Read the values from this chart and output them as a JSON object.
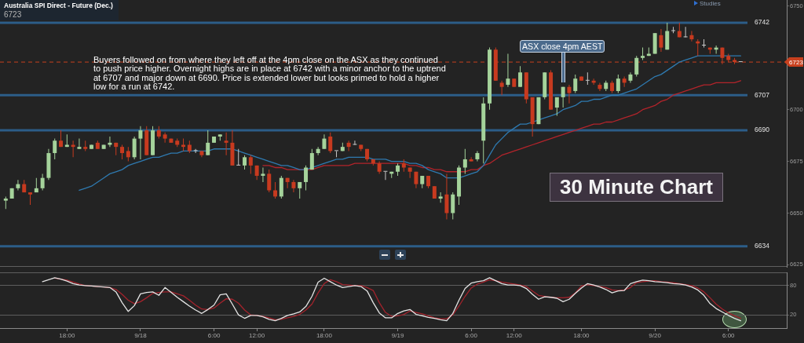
{
  "chart_data": [
    {
      "type": "candlestick",
      "title": "Australia SPI Direct - Future (Dec.)",
      "subtitle": "6723",
      "categories": [
        null,
        null,
        null,
        null,
        null,
        null,
        null,
        null,
        null,
        null,
        null,
        null,
        null,
        null,
        null,
        null,
        null,
        null,
        null,
        null,
        null,
        null,
        null,
        null,
        null,
        null,
        null,
        null,
        null,
        null,
        null,
        null,
        null,
        null,
        null,
        null,
        null,
        null,
        null,
        null,
        null,
        null,
        null,
        null,
        null,
        null,
        null,
        null,
        null,
        null,
        null,
        null,
        null,
        null,
        null,
        null,
        null,
        null,
        null,
        null,
        null,
        null,
        null,
        null,
        null,
        null,
        null,
        null,
        null,
        null,
        null,
        null,
        null,
        null,
        null,
        null,
        null,
        null,
        null,
        null,
        null,
        null,
        null,
        null,
        null,
        null,
        null,
        null,
        null,
        null,
        null,
        null,
        null,
        null,
        null,
        null,
        null,
        null,
        null,
        null,
        null,
        null,
        null,
        null,
        null,
        null,
        null,
        null,
        null,
        null,
        null,
        null,
        null,
        null,
        null,
        null,
        null,
        null,
        null,
        null,
        null
      ],
      "series": [
        {
          "type": "candlestick",
          "ohlc": [
            [
              6656,
              6658,
              6652,
              6657
            ],
            [
              6657,
              6662,
              6657,
              6662
            ],
            [
              6662,
              6666,
              6661,
              6664
            ],
            [
              6664,
              6666,
              6660,
              6660
            ],
            [
              6660,
              6660,
              6654,
              6659
            ],
            [
              6660,
              6667,
              6660,
              6662
            ],
            [
              6662,
              6669,
              6661,
              6667
            ],
            [
              6667,
              6681,
              6666,
              6679
            ],
            [
              6679,
              6686,
              6676,
              6685
            ],
            [
              6685,
              6690,
              6682,
              6682
            ],
            [
              6682,
              6688,
              6682,
              6683
            ],
            [
              6683,
              6685,
              6677,
              6682
            ],
            [
              6681,
              6686,
              6681,
              6682
            ],
            [
              6682,
              6685,
              6680,
              6681
            ],
            [
              6681,
              6683,
              6681,
              6683
            ],
            [
              6684,
              6685,
              6681,
              6681
            ],
            [
              6681,
              6683,
              6681,
              6683
            ],
            [
              6683,
              6687,
              6682,
              6684
            ],
            [
              6684,
              6684,
              6678,
              6682
            ],
            [
              6682,
              6683,
              6676,
              6679
            ],
            [
              6680,
              6682,
              6675,
              6677
            ],
            [
              6677,
              6687,
              6676,
              6686
            ],
            [
              6686,
              6692,
              6676,
              6690
            ],
            [
              6690,
              6692,
              6678,
              6678
            ],
            [
              6678,
              6692,
              6678,
              6690
            ],
            [
              6690,
              6692,
              6686,
              6687
            ],
            [
              6688,
              6689,
              6684,
              6686
            ],
            [
              6686,
              6686,
              6684,
              6684
            ],
            [
              6685,
              6686,
              6682,
              6683
            ],
            [
              6683,
              6686,
              6680,
              6682
            ],
            [
              6683,
              6685,
              6679,
              6680
            ],
            [
              6680,
              6681,
              6679,
              6680
            ],
            [
              6680,
              6680,
              6677,
              6678
            ],
            [
              6678,
              6690,
              6678,
              6684
            ],
            [
              6684,
              6687,
              6684,
              6687
            ],
            [
              6687,
              6688,
              6685,
              6688
            ],
            [
              6685,
              6689,
              6678,
              6684
            ],
            [
              6684,
              6690,
              6673,
              6673
            ],
            [
              6673,
              6681,
              6673,
              6673
            ],
            [
              6673,
              6678,
              6671,
              6677
            ],
            [
              6677,
              6678,
              6669,
              6673
            ],
            [
              6673,
              6673,
              6666,
              6668
            ],
            [
              6668,
              6672,
              6665,
              6669
            ],
            [
              6669,
              6671,
              6660,
              6661
            ],
            [
              6661,
              6665,
              6657,
              6658
            ],
            [
              6658,
              6668,
              6657,
              6667
            ],
            [
              6667,
              6667,
              6662,
              6665
            ],
            [
              6665,
              6666,
              6660,
              6662
            ],
            [
              6662,
              6665,
              6657,
              6665
            ],
            [
              6665,
              6673,
              6661,
              6672
            ],
            [
              6671,
              6681,
              6671,
              6679
            ],
            [
              6679,
              6682,
              6678,
              6681
            ],
            [
              6681,
              6688,
              6681,
              6686
            ],
            [
              6687,
              6689,
              6679,
              6680
            ],
            [
              6680,
              6680,
              6677,
              6680
            ],
            [
              6680,
              6684,
              6680,
              6682
            ],
            [
              6684,
              6685,
              6680,
              6682
            ],
            [
              6683,
              6685,
              6683,
              6683
            ],
            [
              6683,
              6683,
              6680,
              6681
            ],
            [
              6681,
              6681,
              6675,
              6676
            ],
            [
              6676,
              6676,
              6673,
              6674
            ],
            [
              6674,
              6675,
              6669,
              6670
            ],
            [
              6670,
              6670,
              6666,
              6670
            ],
            [
              6669,
              6670,
              6667,
              6670
            ],
            [
              6670,
              6674,
              6668,
              6673
            ],
            [
              6674,
              6676,
              6670,
              6672
            ],
            [
              6672,
              6672,
              6667,
              6670
            ],
            [
              6670,
              6670,
              6662,
              6664
            ],
            [
              6664,
              6668,
              6662,
              6668
            ],
            [
              6668,
              6668,
              6662,
              6663
            ],
            [
              6663,
              6663,
              6657,
              6657
            ],
            [
              6657,
              6660,
              6655,
              6658
            ],
            [
              6659,
              6669,
              6647,
              6650
            ],
            [
              6650,
              6660,
              6647,
              6659
            ],
            [
              6658,
              6673,
              6654,
              6672
            ],
            [
              6672,
              6681,
              6669,
              6676
            ],
            [
              6676,
              6677,
              6675,
              6675
            ],
            [
              6676,
              6680,
              6675,
              6679
            ],
            [
              6685,
              6706,
              6674,
              6703
            ],
            [
              6703,
              6730,
              6700,
              6729
            ],
            [
              6729,
              6730,
              6714,
              6714
            ],
            [
              6713,
              6714,
              6707,
              6711
            ],
            [
              6712,
              6727,
              6711,
              6715
            ],
            [
              6715,
              6715,
              6711,
              6711
            ],
            [
              6711,
              6721,
              6711,
              6718
            ],
            [
              6718,
              6718,
              6703,
              6705
            ],
            [
              6706,
              6706,
              6687,
              6693
            ],
            [
              6693,
              6706,
              6693,
              6706
            ],
            [
              6706,
              6718,
              6705,
              6718
            ],
            [
              6718,
              6719,
              6700,
              6700
            ],
            [
              6701,
              6706,
              6697,
              6706
            ],
            [
              6706,
              6711,
              6701,
              6711
            ],
            [
              6711,
              6712,
              6703,
              6708
            ],
            [
              6709,
              6717,
              6708,
              6715
            ],
            [
              6716,
              6716,
              6714,
              6714
            ],
            [
              6714,
              6718,
              6712,
              6714
            ],
            [
              6714,
              6715,
              6712,
              6713
            ],
            [
              6712,
              6713,
              6709,
              6710
            ],
            [
              6710,
              6714,
              6709,
              6713
            ],
            [
              6713,
              6714,
              6708,
              6709
            ],
            [
              6709,
              6717,
              6708,
              6715
            ],
            [
              6715,
              6716,
              6711,
              6713
            ],
            [
              6714,
              6718,
              6713,
              6717
            ],
            [
              6717,
              6726,
              6716,
              6725
            ],
            [
              6725,
              6730,
              6724,
              6726
            ],
            [
              6726,
              6730,
              6726,
              6727
            ],
            [
              6727,
              6737,
              6727,
              6737
            ],
            [
              6736,
              6739,
              6728,
              6730
            ],
            [
              6729,
              6742,
              6729,
              6738
            ],
            [
              6738,
              6740,
              6737,
              6738
            ],
            [
              6738,
              6742,
              6735,
              6735
            ],
            [
              6735,
              6740,
              6735,
              6735
            ],
            [
              6736,
              6738,
              6733,
              6734
            ],
            [
              6733,
              6734,
              6726,
              6732
            ],
            [
              6731,
              6734,
              6730,
              6731
            ],
            [
              6730,
              6730,
              6727,
              6729
            ],
            [
              6729,
              6731,
              6727,
              6730
            ],
            [
              6730,
              6730,
              6722,
              6725
            ],
            [
              6726,
              6727,
              6723,
              6724
            ],
            [
              6724,
              6725,
              6722,
              6723
            ],
            [
              6723,
              6723,
              6723,
              6723
            ]
          ],
          "colors": [
            "#a5d39b",
            "#a5d39b",
            "#a5d39b",
            "#c73a1f",
            "#c73a1f",
            "#a5d39b",
            "#a5d39b",
            "#a5d39b",
            "#a5d39b",
            "#c73a1f",
            "#a5d39b",
            "#c73a1f",
            "#a5d39b",
            "#c73a1f",
            "#a5d39b",
            "#c73a1f",
            "#a5d39b",
            "#a5d39b",
            "#c73a1f",
            "#c73a1f",
            "#c73a1f",
            "#a5d39b",
            "#a5d39b",
            "#c73a1f",
            "#a5d39b",
            "#c73a1f",
            "#c73a1f",
            "#c73a1f",
            "#c73a1f",
            "#c73a1f",
            "#c73a1f",
            "#c8c8c8",
            "#c73a1f",
            "#a5d39b",
            "#a5d39b",
            "#a5d39b",
            "#c73a1f",
            "#c73a1f",
            "#c8c8c8",
            "#a5d39b",
            "#c73a1f",
            "#c73a1f",
            "#a5d39b",
            "#c73a1f",
            "#c73a1f",
            "#a5d39b",
            "#c73a1f",
            "#c73a1f",
            "#a5d39b",
            "#a5d39b",
            "#a5d39b",
            "#a5d39b",
            "#a5d39b",
            "#c73a1f",
            "#c8c8c8",
            "#a5d39b",
            "#c73a1f",
            "#c8c8c8",
            "#c73a1f",
            "#c73a1f",
            "#c73a1f",
            "#c73a1f",
            "#c8c8c8",
            "#a5d39b",
            "#a5d39b",
            "#c73a1f",
            "#c73a1f",
            "#c73a1f",
            "#a5d39b",
            "#c73a1f",
            "#c73a1f",
            "#a5d39b",
            "#c73a1f",
            "#a5d39b",
            "#a5d39b",
            "#a5d39b",
            "#c73a1f",
            "#a5d39b",
            "#a5d39b",
            "#a5d39b",
            "#c73a1f",
            "#c73a1f",
            "#a5d39b",
            "#c73a1f",
            "#a5d39b",
            "#c73a1f",
            "#c73a1f",
            "#a5d39b",
            "#a5d39b",
            "#c73a1f",
            "#a5d39b",
            "#a5d39b",
            "#c73a1f",
            "#a5d39b",
            "#c73a1f",
            "#c8c8c8",
            "#c73a1f",
            "#c73a1f",
            "#a5d39b",
            "#c73a1f",
            "#a5d39b",
            "#c73a1f",
            "#a5d39b",
            "#a5d39b",
            "#a5d39b",
            "#a5d39b",
            "#a5d39b",
            "#c73a1f",
            "#a5d39b",
            "#c8c8c8",
            "#c73a1f",
            "#c8c8c8",
            "#c73a1f",
            "#c73a1f",
            "#c8c8c8",
            "#c73a1f",
            "#a5d39b",
            "#c73a1f",
            "#c73a1f",
            "#c73a1f",
            "#c8c8c8"
          ]
        },
        {
          "type": "line",
          "color": "#2f7ab0",
          "values": [
            null,
            null,
            null,
            null,
            null,
            null,
            null,
            null,
            null,
            null,
            null,
            null,
            6661,
            6662,
            6663,
            6665,
            6667,
            6669,
            6670,
            6671,
            6673,
            6674,
            6675,
            6676,
            6677,
            6677,
            6678,
            6679,
            6679,
            6680,
            6680,
            6680,
            6680,
            6680,
            6681,
            6681,
            6681,
            6681,
            6680,
            6679,
            6678,
            6677,
            6676,
            6675,
            6674,
            6673,
            6673,
            6672,
            6671,
            6671,
            6672,
            6673,
            6674,
            6675,
            6676,
            6676,
            6677,
            6677,
            6677,
            6677,
            6676,
            6676,
            6676,
            6675,
            6675,
            6675,
            6674,
            6674,
            6673,
            6671,
            6670,
            6669,
            6667,
            6667,
            6667,
            6668,
            6669,
            6670,
            6673,
            6678,
            6683,
            6686,
            6689,
            6691,
            6693,
            6693,
            6694,
            6695,
            6696,
            6697,
            6698,
            6700,
            6701,
            6702,
            6704,
            6704,
            6705,
            6705,
            6706,
            6707,
            6707,
            6708,
            6709,
            6710,
            6712,
            6714,
            6716,
            6717,
            6719,
            6721,
            6723,
            6724,
            6725,
            6726,
            6726,
            6726,
            6726,
            6726,
            6726,
            6726,
            6726
          ]
        },
        {
          "type": "line",
          "color": "#b3242b",
          "values": [
            null,
            null,
            null,
            null,
            null,
            null,
            null,
            null,
            null,
            null,
            null,
            null,
            null,
            null,
            null,
            null,
            null,
            null,
            null,
            null,
            null,
            null,
            null,
            null,
            null,
            null,
            null,
            null,
            null,
            null,
            null,
            null,
            null,
            null,
            null,
            null,
            null,
            null,
            null,
            null,
            null,
            null,
            6673,
            6673,
            6672,
            6672,
            6671,
            6671,
            6671,
            6671,
            6671,
            6672,
            6673,
            6673,
            6673,
            6673,
            6673,
            6674,
            6674,
            6674,
            6674,
            6674,
            6674,
            6674,
            6674,
            6674,
            6673,
            6673,
            6672,
            6672,
            6671,
            6671,
            6670,
            6670,
            6670,
            6670,
            6671,
            6671,
            6673,
            6674,
            6676,
            6678,
            6679,
            6680,
            6681,
            6682,
            6683,
            6684,
            6685,
            6686,
            6687,
            6688,
            6689,
            6690,
            6691,
            6692,
            6693,
            6693,
            6694,
            6694,
            6695,
            6696,
            6697,
            6698,
            6700,
            6701,
            6702,
            6704,
            6705,
            6707,
            6708,
            6709,
            6710,
            6711,
            6712,
            6712,
            6713,
            6713,
            6713,
            6713,
            6714
          ]
        }
      ],
      "ylim": [
        6624,
        6753
      ],
      "yticks": [
        6625,
        6650,
        6675,
        6700,
        6750
      ],
      "ref_lines": [
        {
          "axis": "y",
          "value": 6742,
          "label": "6742",
          "color": "#2c5d88"
        },
        {
          "axis": "y",
          "value": 6707,
          "label": "6707",
          "color": "#2c5d88"
        },
        {
          "axis": "y",
          "value": 6690,
          "label": "6690",
          "color": "#2c5d88"
        },
        {
          "axis": "y",
          "value": 6634,
          "label": "6634",
          "color": "#2c5d88"
        },
        {
          "axis": "y",
          "value": 6723,
          "label": "6723",
          "color": "#c8401e",
          "line_style": "dashed"
        }
      ],
      "annotations": [
        "Buyers followed on from where they left off at the 4pm close on the ASX as they continued\nto push price higher. Overnight highs are in place at 6742 with a minor anchor to the uptrend\nat 6707 and major down at 6690. Price is extended lower but looks primed to hold a higher\nlow for a run at 6742.",
        "ASX close 4pm AEST",
        "30 Minute Chart",
        "Studies"
      ],
      "tick_labels": "y"
    },
    {
      "type": "line",
      "categories": [
        null,
        null,
        null,
        null,
        null,
        null,
        null,
        null,
        null,
        null,
        "18:00",
        null,
        null,
        null,
        null,
        null,
        null,
        null,
        null,
        null,
        null,
        null,
        "9/18",
        null,
        null,
        null,
        null,
        null,
        null,
        null,
        null,
        null,
        null,
        null,
        "6:00",
        null,
        null,
        null,
        null,
        null,
        null,
        "12:00",
        null,
        null,
        null,
        null,
        null,
        null,
        null,
        null,
        null,
        null,
        "18:00",
        null,
        null,
        null,
        null,
        null,
        null,
        null,
        null,
        null,
        null,
        null,
        "9/19",
        null,
        null,
        null,
        null,
        null,
        null,
        null,
        null,
        null,
        null,
        null,
        "6:00",
        null,
        null,
        null,
        null,
        null,
        null,
        "12:00",
        null,
        null,
        null,
        null,
        null,
        null,
        null,
        null,
        null,
        null,
        "18:00",
        null,
        null,
        null,
        null,
        null,
        null,
        null,
        null,
        null,
        null,
        null,
        "9/20",
        null,
        null,
        null,
        null,
        null,
        null,
        null,
        null,
        null,
        null,
        null,
        "6:00",
        null,
        null
      ],
      "series": [
        {
          "color": "#e4e4e4",
          "values": [
            null,
            null,
            null,
            null,
            null,
            null,
            88,
            92,
            96,
            93,
            89,
            84,
            81,
            80,
            79,
            78,
            77,
            76,
            67,
            45,
            27,
            39,
            63,
            66,
            67,
            60,
            76,
            66,
            56,
            47,
            38,
            30,
            23,
            31,
            40,
            61,
            63,
            42,
            20,
            13,
            19,
            19,
            16,
            11,
            8,
            13,
            19,
            22,
            26,
            37,
            58,
            87,
            95,
            88,
            81,
            76,
            78,
            80,
            78,
            69,
            45,
            24,
            14,
            14,
            23,
            28,
            31,
            21,
            18,
            15,
            13,
            10,
            8,
            23,
            50,
            74,
            85,
            88,
            90,
            96,
            90,
            84,
            81,
            81,
            80,
            74,
            62,
            52,
            57,
            56,
            54,
            47,
            52,
            64,
            75,
            84,
            81,
            77,
            72,
            65,
            69,
            70,
            84,
            88,
            91,
            90,
            88,
            87,
            86,
            84,
            83,
            81,
            77,
            71,
            60,
            43,
            33,
            26,
            19,
            13,
            8
          ]
        },
        {
          "color": "#a3232c",
          "values": [
            null,
            null,
            null,
            null,
            null,
            null,
            null,
            null,
            95,
            93,
            91,
            87,
            83,
            80,
            79,
            78,
            77,
            76,
            72,
            62,
            50,
            43,
            47,
            55,
            64,
            66,
            67,
            67,
            63,
            59,
            50,
            40,
            32,
            31,
            34,
            44,
            53,
            52,
            44,
            30,
            20,
            19,
            17,
            14,
            10,
            11,
            14,
            17,
            21,
            30,
            42,
            65,
            84,
            92,
            88,
            82,
            81,
            80,
            80,
            76,
            70,
            45,
            25,
            17,
            18,
            21,
            28,
            25,
            22,
            18,
            14,
            12,
            12,
            20,
            38,
            58,
            75,
            83,
            87,
            92,
            90,
            87,
            85,
            83,
            81,
            78,
            69,
            60,
            58,
            56,
            55,
            55,
            56,
            65,
            79,
            82,
            80,
            78,
            76,
            71,
            70,
            71,
            76,
            86,
            88,
            89,
            90,
            88,
            87,
            86,
            84,
            82,
            80,
            75,
            67,
            55,
            42,
            32,
            24,
            18,
            13
          ]
        }
      ],
      "ylim": [
        -7,
        107
      ],
      "yticks": [
        20,
        80
      ],
      "grid": "y"
    }
  ]
}
